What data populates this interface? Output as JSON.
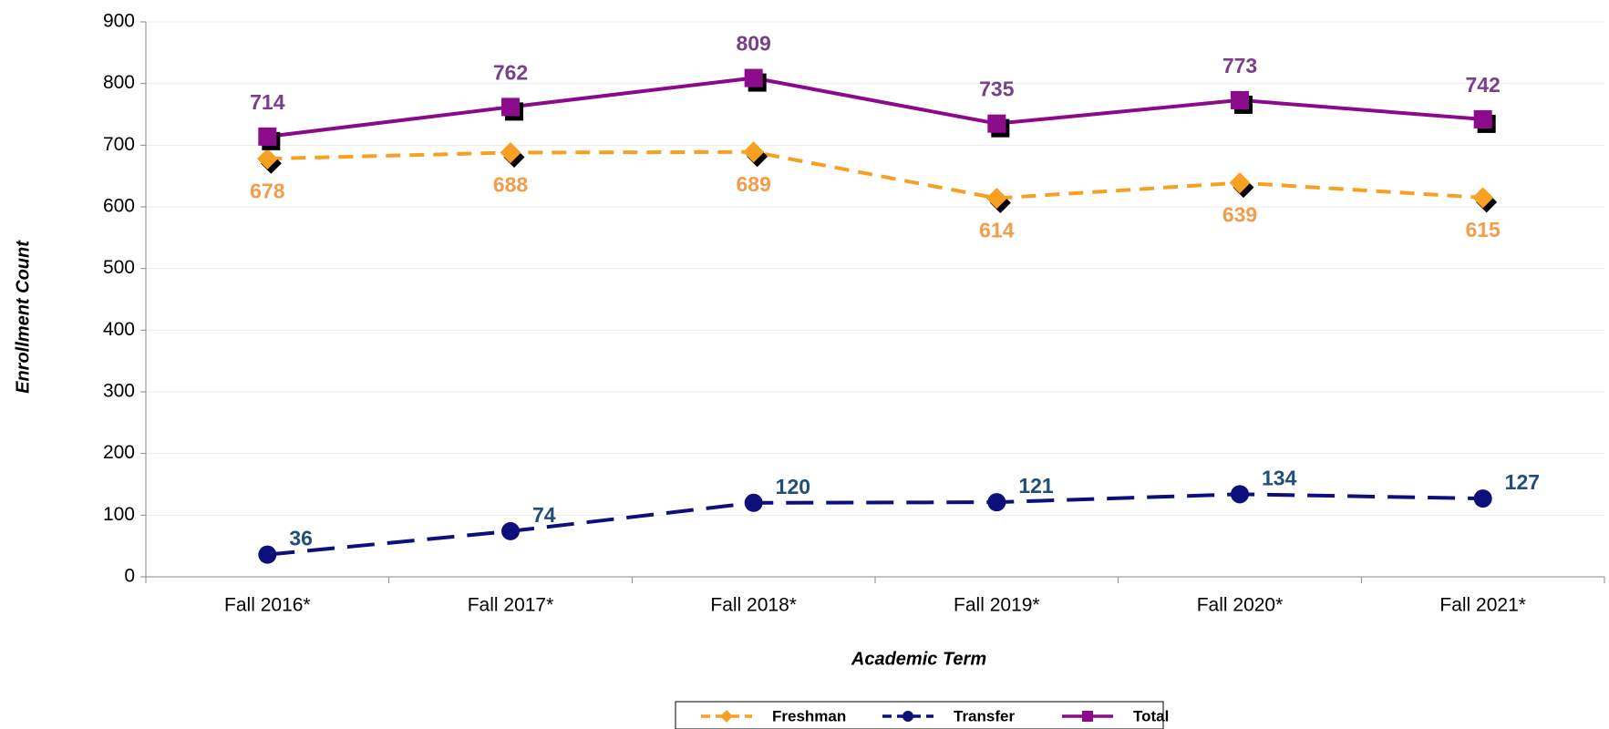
{
  "chart_data": {
    "type": "line",
    "x_label": "Academic Term",
    "y_label": "Enrollment Count",
    "categories": [
      "Fall 2016*",
      "Fall 2017*",
      "Fall 2018*",
      "Fall 2019*",
      "Fall 2020*",
      "Fall 2021*"
    ],
    "series": [
      {
        "name": "Freshman",
        "color": "#f7a020",
        "label_color": "#f39c4a",
        "marker": "diamond",
        "dash": "dashed",
        "label_side": "below",
        "values": [
          678,
          688,
          689,
          614,
          639,
          615
        ]
      },
      {
        "name": "Transfer",
        "color": "#0d0f7a",
        "label_color": "#1f4e79",
        "marker": "circle",
        "dash": "longdash",
        "label_side": "right",
        "values": [
          36,
          74,
          120,
          121,
          134,
          127
        ]
      },
      {
        "name": "Total",
        "color": "#8b0a8c",
        "label_color": "#7a3f8a",
        "marker": "square",
        "dash": "solid",
        "label_side": "above",
        "values": [
          714,
          762,
          809,
          735,
          773,
          742
        ]
      }
    ],
    "ylim": [
      0,
      900
    ],
    "yticks": [
      0,
      100,
      200,
      300,
      400,
      500,
      600,
      700,
      800,
      900
    ],
    "grid": true,
    "legend": "bottom"
  }
}
